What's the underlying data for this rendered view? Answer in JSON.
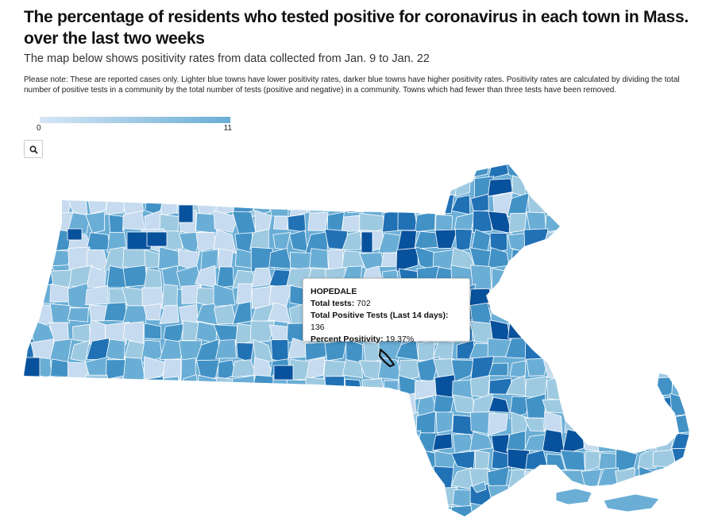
{
  "header": {
    "title": "The percentage of residents who tested positive for coronavirus in each town in Mass. over the last two weeks",
    "subtitle": "The map below shows positivity rates from data collected from Jan. 9 to Jan. 22",
    "note": "Please note: These are reported cases only. Lighter blue towns have lower positivity rates, darker blue towns have higher positivity rates. Positivity rates are calculated by dividing the total number of positive tests in a community by the total number of tests (positive and negative) in a community. Towns which had fewer than three tests have been removed."
  },
  "legend": {
    "min_label": "0",
    "max_label": "11",
    "color_low": "#d6e6f4",
    "color_high": "#6aaed6"
  },
  "search": {
    "icon": "search-icon"
  },
  "map": {
    "region": "Massachusetts towns",
    "colors": [
      "#c6dbef",
      "#9ecae1",
      "#6aaed6",
      "#4292c6",
      "#2171b5",
      "#08519c"
    ],
    "highlighted_town": "HOPEDALE"
  },
  "tooltip": {
    "town": "HOPEDALE",
    "total_tests_label": "Total tests",
    "total_tests": "702",
    "positive_label": "Total Positive Tests (Last 14 days)",
    "positive_value": "136",
    "positivity_label": "Percent Positivity",
    "positivity_value": "19.37%"
  }
}
